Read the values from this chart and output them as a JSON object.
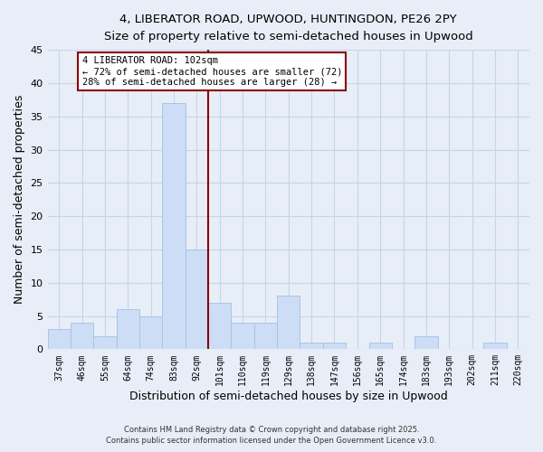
{
  "title1": "4, LIBERATOR ROAD, UPWOOD, HUNTINGDON, PE26 2PY",
  "title2": "Size of property relative to semi-detached houses in Upwood",
  "xlabel": "Distribution of semi-detached houses by size in Upwood",
  "ylabel": "Number of semi-detached properties",
  "bin_labels": [
    "37sqm",
    "46sqm",
    "55sqm",
    "64sqm",
    "74sqm",
    "83sqm",
    "92sqm",
    "101sqm",
    "110sqm",
    "119sqm",
    "129sqm",
    "138sqm",
    "147sqm",
    "156sqm",
    "165sqm",
    "174sqm",
    "183sqm",
    "193sqm",
    "202sqm",
    "211sqm",
    "220sqm"
  ],
  "bin_values": [
    3,
    4,
    2,
    6,
    5,
    37,
    15,
    7,
    4,
    4,
    8,
    1,
    1,
    0,
    1,
    0,
    2,
    0,
    0,
    1,
    0
  ],
  "bar_color": "#ccddf5",
  "bar_edge_color": "#a8c4e8",
  "vline_color": "#8b0000",
  "ylim": [
    0,
    45
  ],
  "yticks": [
    0,
    5,
    10,
    15,
    20,
    25,
    30,
    35,
    40,
    45
  ],
  "annotation_title": "4 LIBERATOR ROAD: 102sqm",
  "annotation_line1": "← 72% of semi-detached houses are smaller (72)",
  "annotation_line2": "28% of semi-detached houses are larger (28) →",
  "annotation_box_color": "#ffffff",
  "annotation_box_edge": "#8b0000",
  "footer1": "Contains HM Land Registry data © Crown copyright and database right 2025.",
  "footer2": "Contains public sector information licensed under the Open Government Licence v3.0.",
  "bg_color": "#e8eef8",
  "grid_color": "#c8d4e8",
  "title1_fontsize": 10.5,
  "title2_fontsize": 9.5
}
